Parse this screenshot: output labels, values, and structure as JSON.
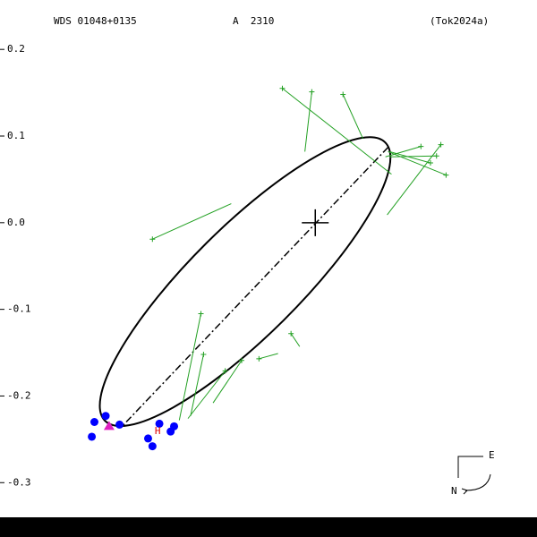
{
  "chart_data": {
    "type": "orbit",
    "title": "WDS 01048+0135",
    "subtitle": "A  2310",
    "reference": "(Tok2024a)",
    "xlim": [
      -0.364,
      0.256
    ],
    "ylim": [
      -0.34,
      0.257
    ],
    "yticks": [
      0.2,
      0.1,
      {
        "value": 0,
        "label": "0.0"
      },
      -0.1,
      -0.2,
      -0.3
    ],
    "primary": {
      "x": 0,
      "y": 0
    },
    "orbit": {
      "center_x": -0.081,
      "center_y": -0.068,
      "semi_major": 0.228,
      "semi_minor": 0.063,
      "angle": 44.8,
      "color": "#000000"
    },
    "node_line": {
      "x": [
        0.084,
        -0.224
      ],
      "y": [
        0.087,
        -0.236
      ]
    },
    "observations": {
      "color": "#22a022",
      "x": [
        -0.038,
        -0.004,
        0.032,
        0.122,
        0.145,
        0.14,
        0.133,
        0.151,
        -0.188,
        -0.132,
        -0.129,
        -0.104,
        -0.085,
        -0.065,
        -0.028
      ],
      "y": [
        0.155,
        0.151,
        0.148,
        0.088,
        0.09,
        0.077,
        0.069,
        0.055,
        -0.019,
        -0.105,
        -0.152,
        -0.171,
        -0.159,
        -0.157,
        -0.128
      ],
      "fit_x": [
        0.088,
        -0.012,
        0.055,
        0.081,
        0.083,
        0.086,
        0.086,
        0.084,
        -0.097,
        -0.157,
        -0.144,
        -0.147,
        -0.118,
        -0.043,
        -0.018
      ],
      "fit_y": [
        0.056,
        0.082,
        0.097,
        0.076,
        0.009,
        0.076,
        0.082,
        0.082,
        0.022,
        -0.228,
        -0.223,
        -0.226,
        -0.208,
        -0.151,
        -0.143
      ]
    },
    "speckle": {
      "color": "#0000ff",
      "x": [
        -0.255,
        -0.242,
        -0.258,
        -0.226,
        -0.193,
        -0.18,
        -0.188,
        -0.167,
        -0.163
      ],
      "y": [
        -0.23,
        -0.223,
        -0.247,
        -0.233,
        -0.249,
        -0.232,
        -0.258,
        -0.241,
        -0.235
      ]
    },
    "first_observation": {
      "x": -0.238,
      "y": -0.235,
      "color": "#e020c0"
    },
    "periastron": {
      "label": "H",
      "x": -0.182,
      "y": -0.241,
      "color": "#e00000"
    },
    "compass": {
      "east": "E",
      "north": "N"
    }
  }
}
